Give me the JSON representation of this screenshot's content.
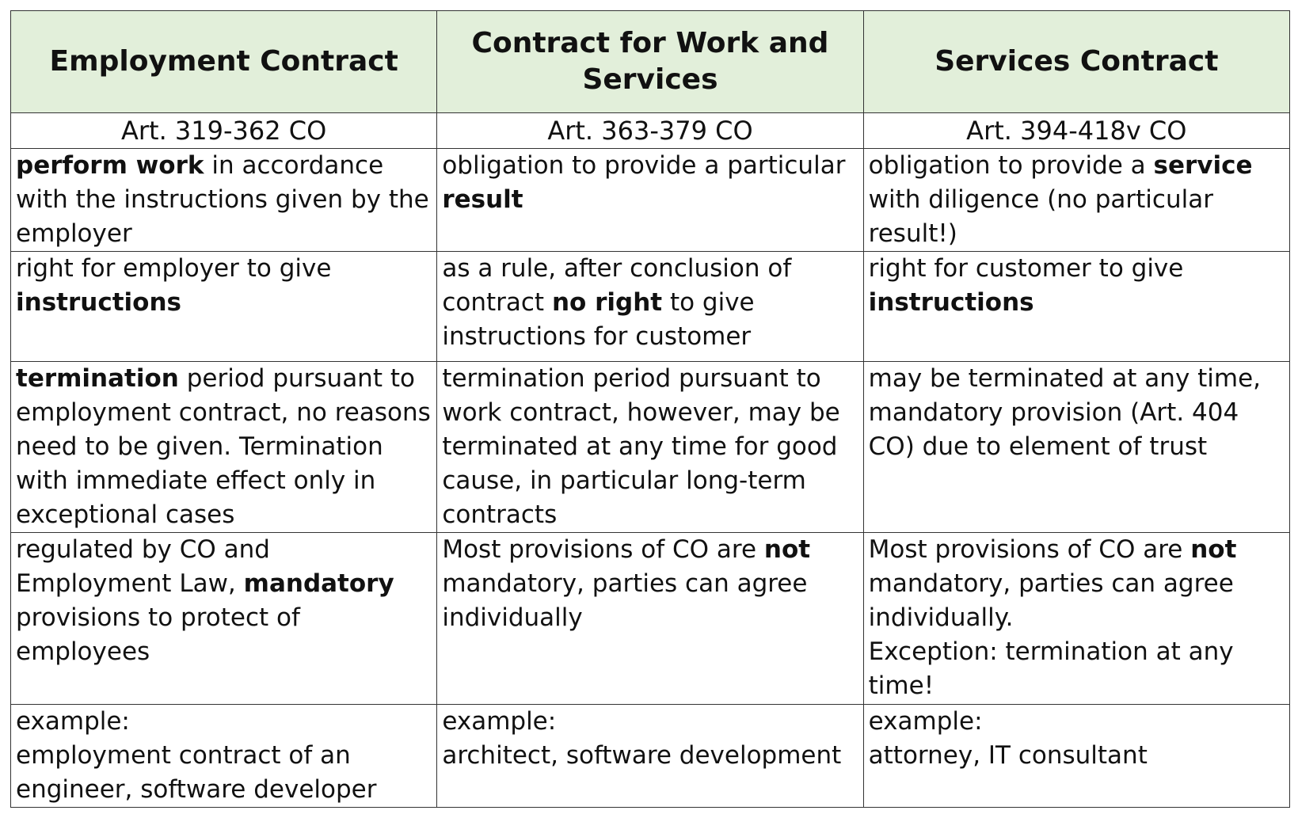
{
  "headers": [
    "Employment Contract",
    "Contract for Work and Services",
    "Services Contract"
  ],
  "articles": [
    "Art. 319-362 CO",
    "Art. 363-379 CO",
    "Art. 394-418v CO"
  ],
  "rows": [
    {
      "cells": [
        {
          "segments": [
            {
              "text": "perform work",
              "bold": true
            },
            {
              "text": " in accordance with the instructions given by the employer",
              "bold": false
            }
          ]
        },
        {
          "segments": [
            {
              "text": "obligation to provide a particular ",
              "bold": false
            },
            {
              "text": "result",
              "bold": true
            }
          ]
        },
        {
          "segments": [
            {
              "text": "obligation to provide a ",
              "bold": false
            },
            {
              "text": "service",
              "bold": true
            },
            {
              "text": " with diligence (no particular result!)",
              "bold": false
            }
          ]
        }
      ]
    },
    {
      "cells": [
        {
          "segments": [
            {
              "text": "right for employer to give ",
              "bold": false
            },
            {
              "text": "instructions",
              "bold": true
            }
          ]
        },
        {
          "segments": [
            {
              "text": "as a rule, after conclusion of contract ",
              "bold": false
            },
            {
              "text": "no right",
              "bold": true
            },
            {
              "text": " to give instructions for customer",
              "bold": false
            }
          ]
        },
        {
          "segments": [
            {
              "text": "right for customer to give ",
              "bold": false
            },
            {
              "text": "instructions",
              "bold": true
            }
          ]
        }
      ]
    },
    {
      "cells": [
        {
          "segments": [
            {
              "text": "termination",
              "bold": true
            },
            {
              "text": " period pursuant to employment contract, no reasons need to be given. Termination with immediate effect only in exceptional cases",
              "bold": false
            }
          ]
        },
        {
          "segments": [
            {
              "text": "termination period pursuant to work contract, however, may be terminated at any time for good cause, in particular long-term contracts",
              "bold": false
            }
          ]
        },
        {
          "segments": [
            {
              "text": "may be terminated at any time, mandatory provision (Art. 404 CO) due to element of trust",
              "bold": false
            }
          ]
        }
      ]
    },
    {
      "cells": [
        {
          "segments": [
            {
              "text": "regulated by CO and Employment Law, ",
              "bold": false
            },
            {
              "text": "mandatory",
              "bold": true
            },
            {
              "text": " provisions to protect of employees",
              "bold": false
            }
          ]
        },
        {
          "segments": [
            {
              "text": "Most provisions of CO are ",
              "bold": false
            },
            {
              "text": "not",
              "bold": true
            },
            {
              "text": " mandatory, parties can agree individually",
              "bold": false
            }
          ]
        },
        {
          "segments": [
            {
              "text": "Most provisions of CO are ",
              "bold": false
            },
            {
              "text": "not",
              "bold": true
            },
            {
              "text": " mandatory, parties can agree individually.\nException: termination at any time!",
              "bold": false
            }
          ]
        }
      ]
    },
    {
      "cells": [
        {
          "segments": [
            {
              "text": "example:\nemployment contract of an engineer, software developer",
              "bold": false
            }
          ]
        },
        {
          "segments": [
            {
              "text": "example:\narchitect, software development",
              "bold": false
            }
          ]
        },
        {
          "segments": [
            {
              "text": "example:\nattorney, IT consultant",
              "bold": false
            }
          ]
        }
      ]
    }
  ]
}
